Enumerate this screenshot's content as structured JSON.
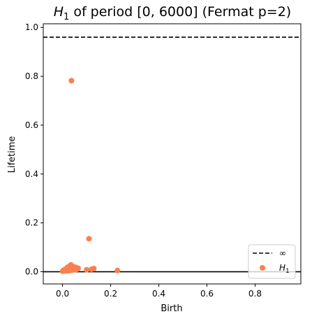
{
  "chart_data": {
    "type": "scatter",
    "title": "of period [0, 6000]  (Fermat p=2)",
    "title_math": "H",
    "title_math_sub": "1",
    "xlabel": "Birth",
    "ylabel": "Lifetime",
    "xlim": [
      -0.08,
      0.99
    ],
    "ylim": [
      -0.05,
      1.015
    ],
    "xticks": [
      0.0,
      0.2,
      0.4,
      0.6,
      0.8
    ],
    "xtick_labels": [
      "0.0",
      "0.2",
      "0.4",
      "0.6",
      "0.8"
    ],
    "yticks": [
      0.0,
      0.2,
      0.4,
      0.6,
      0.8,
      1.0
    ],
    "ytick_labels": [
      "0.0",
      "0.2",
      "0.4",
      "0.6",
      "0.8",
      "1.0"
    ],
    "grid": false,
    "legend_position": "bottom-right",
    "infinity_line": {
      "y": 0.96,
      "label": "∞",
      "color": "#000000",
      "style": "dashed"
    },
    "zero_line": {
      "y": 0.0,
      "color": "#000000"
    },
    "series": [
      {
        "name": "H",
        "name_sub": "1",
        "color": "#fa8050",
        "points": [
          [
            0.037,
            0.782
          ],
          [
            0.11,
            0.135
          ],
          [
            0.228,
            0.005
          ],
          [
            0.13,
            0.013
          ],
          [
            0.12,
            0.01
          ],
          [
            0.1,
            0.008
          ],
          [
            0.065,
            0.014
          ],
          [
            0.06,
            0.01
          ],
          [
            0.055,
            0.018
          ],
          [
            0.05,
            0.008
          ],
          [
            0.045,
            0.015
          ],
          [
            0.042,
            0.022
          ],
          [
            0.04,
            0.012
          ],
          [
            0.038,
            0.006
          ],
          [
            0.035,
            0.028
          ],
          [
            0.033,
            0.018
          ],
          [
            0.03,
            0.01
          ],
          [
            0.028,
            0.022
          ],
          [
            0.026,
            0.004
          ],
          [
            0.024,
            0.015
          ],
          [
            0.022,
            0.008
          ],
          [
            0.02,
            0.018
          ],
          [
            0.018,
            0.004
          ],
          [
            0.016,
            0.012
          ],
          [
            0.014,
            0.006
          ],
          [
            0.012,
            0.01
          ],
          [
            0.01,
            0.003
          ],
          [
            0.008,
            0.008
          ],
          [
            0.006,
            0.004
          ],
          [
            0.004,
            0.006
          ],
          [
            0.002,
            0.003
          ],
          [
            0.0,
            0.002
          ]
        ]
      }
    ]
  }
}
